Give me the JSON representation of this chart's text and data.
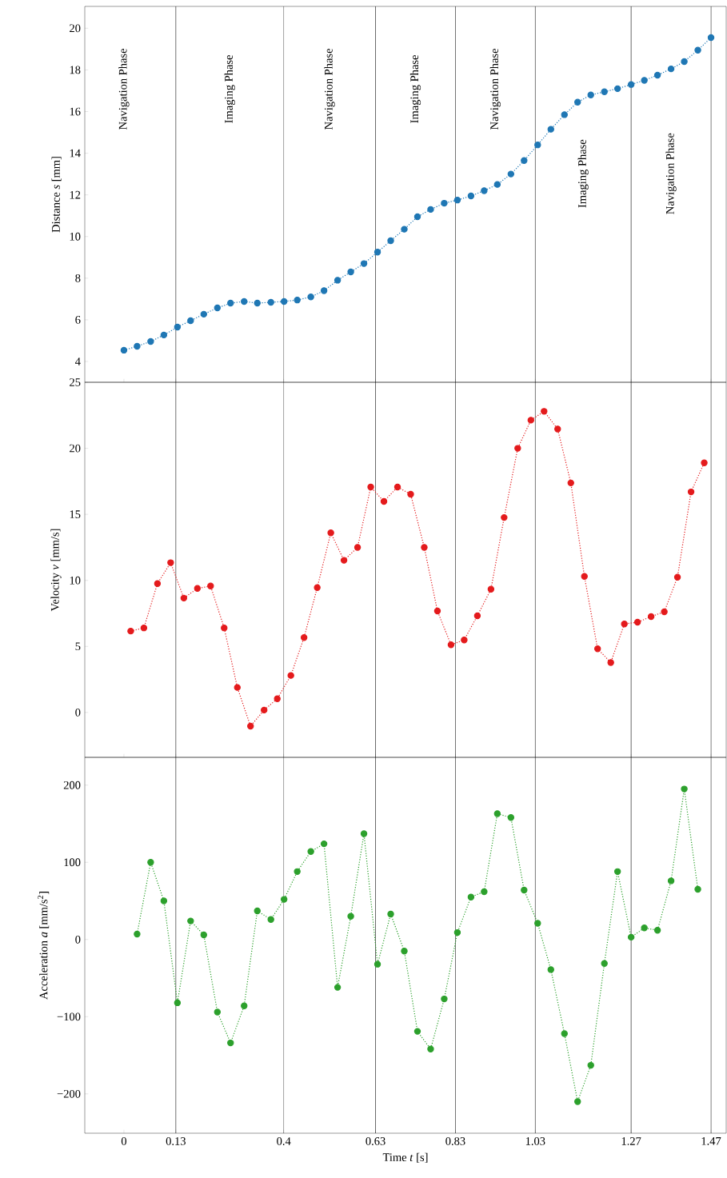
{
  "chart_data": [
    {
      "type": "line",
      "ylabel": "Distance *s* [mm]",
      "color": "#1f77b4",
      "marker": "circle",
      "line_style": "dotted",
      "tick_labels": "y",
      "xlim": [
        -0.098,
        1.508
      ],
      "ylim": [
        3.0,
        21.05
      ],
      "xticks": [
        0,
        0.13,
        0.4,
        0.63,
        0.83,
        1.03,
        1.27,
        1.47
      ],
      "yticks": [
        4,
        6,
        8,
        10,
        12,
        14,
        16,
        18,
        20
      ],
      "x": [
        0,
        0.033,
        0.067,
        0.1,
        0.134,
        0.167,
        0.2,
        0.234,
        0.267,
        0.301,
        0.334,
        0.368,
        0.401,
        0.434,
        0.468,
        0.501,
        0.535,
        0.568,
        0.601,
        0.635,
        0.668,
        0.702,
        0.735,
        0.768,
        0.802,
        0.835,
        0.869,
        0.902,
        0.935,
        0.969,
        1.002,
        1.036,
        1.069,
        1.103,
        1.136,
        1.169,
        1.203,
        1.236,
        1.27,
        1.303,
        1.336,
        1.37,
        1.403,
        1.437,
        1.47
      ],
      "values": [
        4.54,
        4.73,
        4.96,
        5.27,
        5.65,
        5.96,
        6.27,
        6.57,
        6.8,
        6.88,
        6.8,
        6.84,
        6.88,
        6.95,
        7.1,
        7.4,
        7.9,
        8.3,
        8.7,
        9.25,
        9.8,
        10.35,
        10.95,
        11.3,
        11.6,
        11.75,
        11.95,
        12.2,
        12.5,
        13.0,
        13.65,
        14.4,
        15.15,
        15.85,
        16.45,
        16.8,
        16.95,
        17.1,
        17.3,
        17.5,
        17.75,
        18.05,
        18.4,
        18.95,
        19.55
      ],
      "ref_lines": [
        {
          "axis": "x",
          "value": 0.13
        },
        {
          "axis": "x",
          "value": 0.4
        },
        {
          "axis": "x",
          "value": 0.63
        },
        {
          "axis": "x",
          "value": 0.83
        },
        {
          "axis": "x",
          "value": 1.03
        },
        {
          "axis": "x",
          "value": 1.27
        },
        {
          "axis": "x",
          "value": 1.47
        }
      ],
      "annotations": [
        "Navigation Phase",
        "Imaging Phase",
        "Navigation Phase",
        "Imaging Phase",
        "Navigation Phase",
        "Imaging Phase",
        "Navigation Phase"
      ]
    },
    {
      "type": "line",
      "ylabel": "Velocity *v* [mm/s]",
      "color": "#e41a1c",
      "marker": "circle",
      "line_style": "dotted",
      "tick_labels": "y",
      "xlim": [
        -0.098,
        1.508
      ],
      "ylim": [
        -3.4,
        25
      ],
      "xticks": [
        0,
        0.13,
        0.4,
        0.63,
        0.83,
        1.03,
        1.27,
        1.47
      ],
      "yticks": [
        0,
        5,
        10,
        15,
        20,
        25
      ],
      "x": [
        0.017,
        0.05,
        0.084,
        0.117,
        0.15,
        0.184,
        0.217,
        0.251,
        0.284,
        0.317,
        0.351,
        0.384,
        0.418,
        0.451,
        0.484,
        0.518,
        0.551,
        0.585,
        0.618,
        0.651,
        0.685,
        0.718,
        0.752,
        0.785,
        0.819,
        0.852,
        0.885,
        0.919,
        0.952,
        0.986,
        1.019,
        1.052,
        1.086,
        1.119,
        1.153,
        1.186,
        1.219,
        1.253,
        1.286,
        1.32,
        1.353,
        1.386,
        1.42,
        1.453
      ],
      "values": [
        6.16,
        6.4,
        9.76,
        11.34,
        8.66,
        9.39,
        9.57,
        6.4,
        1.89,
        -1.04,
        0.18,
        1.04,
        2.8,
        5.67,
        9.45,
        13.6,
        11.52,
        12.5,
        17.07,
        15.98,
        17.07,
        16.52,
        12.5,
        7.68,
        5.12,
        5.49,
        7.32,
        9.33,
        14.76,
        20.0,
        22.13,
        22.8,
        21.46,
        17.38,
        10.3,
        4.82,
        3.78,
        6.7,
        6.83,
        7.26,
        7.62,
        10.24,
        16.7,
        18.9
      ],
      "ref_lines": [
        {
          "axis": "x",
          "value": 0.13
        },
        {
          "axis": "x",
          "value": 0.4
        },
        {
          "axis": "x",
          "value": 0.63
        },
        {
          "axis": "x",
          "value": 0.83
        },
        {
          "axis": "x",
          "value": 1.03
        },
        {
          "axis": "x",
          "value": 1.27
        },
        {
          "axis": "x",
          "value": 1.47
        }
      ]
    },
    {
      "type": "line",
      "ylabel": "Acceleration *a* [mm/s$^{2}$]",
      "xlabel": "Time *t* [s]",
      "color": "#2ca02c",
      "marker": "circle",
      "line_style": "dotted",
      "xlim": [
        -0.098,
        1.508
      ],
      "ylim": [
        -251,
        236
      ],
      "xticks": [
        0,
        0.13,
        0.4,
        0.63,
        0.83,
        1.03,
        1.27,
        1.47
      ],
      "yticks": [
        {
          "value": -200,
          "label": "−200"
        },
        {
          "value": -100,
          "label": "−100"
        },
        0,
        100,
        200
      ],
      "x": [
        0.033,
        0.067,
        0.1,
        0.134,
        0.167,
        0.2,
        0.234,
        0.267,
        0.301,
        0.334,
        0.368,
        0.401,
        0.434,
        0.468,
        0.501,
        0.535,
        0.568,
        0.601,
        0.635,
        0.668,
        0.702,
        0.735,
        0.768,
        0.802,
        0.835,
        0.869,
        0.902,
        0.935,
        0.969,
        1.002,
        1.036,
        1.069,
        1.103,
        1.136,
        1.169,
        1.203,
        1.236,
        1.27,
        1.303,
        1.336,
        1.37,
        1.403,
        1.437
      ],
      "values": [
        7,
        100,
        50,
        -82,
        24,
        6,
        -94,
        -134,
        -86,
        37,
        26,
        52,
        88,
        114,
        124,
        -62,
        30,
        137,
        -32,
        33,
        -15,
        -119,
        -142,
        -77,
        9,
        55,
        62,
        163,
        158,
        64,
        21,
        -39,
        -122,
        -210,
        -163,
        -31,
        88,
        3,
        15,
        12,
        76,
        195,
        65
      ],
      "ref_lines": [
        {
          "axis": "x",
          "value": 0.13
        },
        {
          "axis": "x",
          "value": 0.4
        },
        {
          "axis": "x",
          "value": 0.63
        },
        {
          "axis": "x",
          "value": 0.83
        },
        {
          "axis": "x",
          "value": 1.03
        },
        {
          "axis": "x",
          "value": 1.27
        },
        {
          "axis": "x",
          "value": 1.47
        }
      ]
    }
  ]
}
